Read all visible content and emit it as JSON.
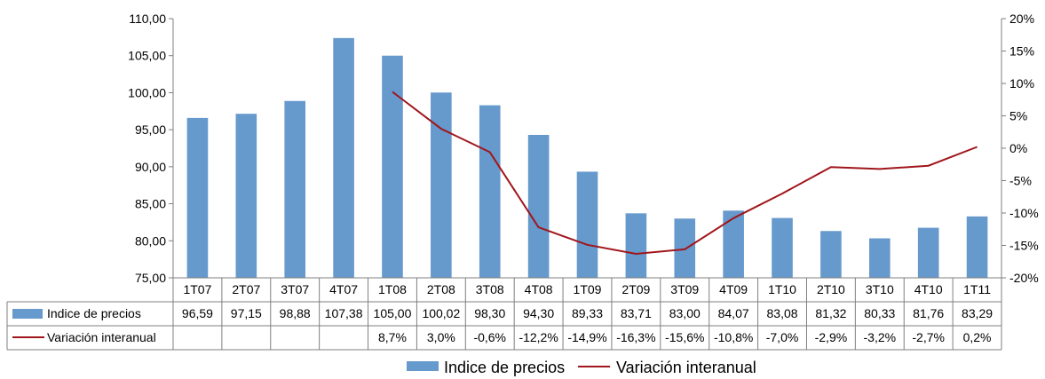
{
  "colors": {
    "bar": "#6699cc",
    "line": "#a0161c",
    "axis": "#7f7f7f",
    "grid": "#bfbfbf"
  },
  "chart_data": {
    "type": "bar",
    "categories": [
      "1T07",
      "2T07",
      "3T07",
      "4T07",
      "1T08",
      "2T08",
      "3T08",
      "4T08",
      "1T09",
      "2T09",
      "3T09",
      "4T09",
      "1T10",
      "2T10",
      "3T10",
      "4T10",
      "1T11"
    ],
    "series": [
      {
        "name": "Indice de precios",
        "type": "bar",
        "axis": "left",
        "values": [
          96.59,
          97.15,
          98.88,
          107.38,
          105.0,
          100.02,
          98.3,
          94.3,
          89.33,
          83.71,
          83.0,
          84.07,
          83.08,
          81.32,
          80.33,
          81.76,
          83.29
        ],
        "labels": [
          "96,59",
          "97,15",
          "98,88",
          "107,38",
          "105,00",
          "100,02",
          "98,30",
          "94,30",
          "89,33",
          "83,71",
          "83,00",
          "84,07",
          "83,08",
          "81,32",
          "80,33",
          "81,76",
          "83,29"
        ]
      },
      {
        "name": "Variación interanual",
        "type": "line",
        "axis": "right",
        "values": [
          null,
          null,
          null,
          null,
          8.7,
          3.0,
          -0.6,
          -12.2,
          -14.9,
          -16.3,
          -15.6,
          -10.8,
          -7.0,
          -2.9,
          -3.2,
          -2.7,
          0.2
        ],
        "labels": [
          "",
          "",
          "",
          "",
          "8,7%",
          "3,0%",
          "-0,6%",
          "-12,2%",
          "-14,9%",
          "-16,3%",
          "-15,6%",
          "-10,8%",
          "-7,0%",
          "-2,9%",
          "-3,2%",
          "-2,7%",
          "0,2%"
        ]
      }
    ],
    "y_left": {
      "ylim": [
        75,
        110
      ],
      "ticks": [
        "75,00",
        "80,00",
        "85,00",
        "90,00",
        "95,00",
        "100,00",
        "105,00",
        "110,00"
      ]
    },
    "y_right": {
      "ylim": [
        -20,
        20
      ],
      "ticks": [
        "-20%",
        "-15%",
        "-10%",
        "-5%",
        "0%",
        "5%",
        "10%",
        "15%",
        "20%"
      ]
    },
    "legend": {
      "placement": "bottom",
      "entries": [
        "Indice de precios",
        "Variación interanual"
      ]
    },
    "data_table": true,
    "grid": false
  }
}
